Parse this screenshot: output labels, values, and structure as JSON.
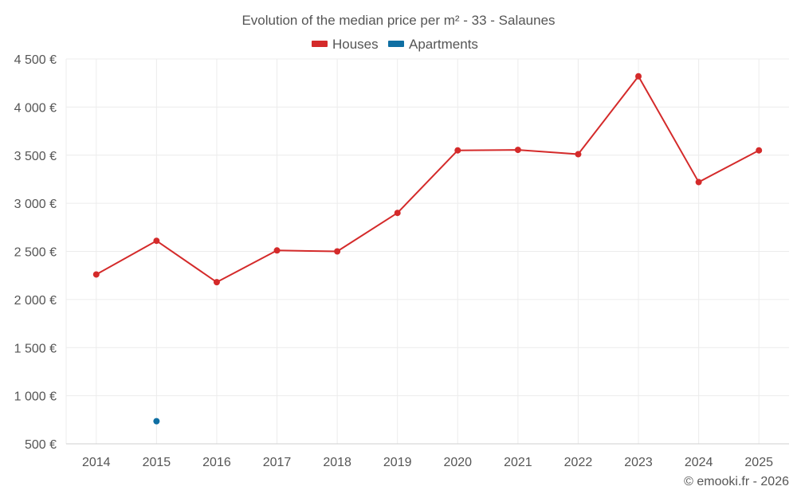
{
  "chart_data": {
    "type": "line",
    "title": "Evolution of the median price per m² - 33 - Salaunes",
    "categories": [
      "2014",
      "2015",
      "2016",
      "2017",
      "2018",
      "2019",
      "2020",
      "2021",
      "2022",
      "2023",
      "2024",
      "2025"
    ],
    "series": [
      {
        "name": "Houses",
        "color": "#d42a2a",
        "values": [
          2260,
          2610,
          2180,
          2510,
          2500,
          2900,
          3550,
          3555,
          3510,
          4320,
          3220,
          3550
        ]
      },
      {
        "name": "Apartments",
        "color": "#0f6fa3",
        "values": [
          null,
          735,
          null,
          null,
          null,
          null,
          null,
          null,
          null,
          null,
          null,
          null
        ]
      }
    ],
    "ylim": [
      500,
      4500
    ],
    "yticks": [
      500,
      1000,
      1500,
      2000,
      2500,
      3000,
      3500,
      4000,
      4500
    ],
    "ytick_labels": [
      "500 €",
      "1 000 €",
      "1 500 €",
      "2 000 €",
      "2 500 €",
      "3 000 €",
      "3 500 €",
      "4 000 €",
      "4 500 €"
    ],
    "xlabel": "",
    "ylabel": "",
    "legend_position": "top-center",
    "grid": true
  },
  "credit": "© emooki.fr - 2026"
}
